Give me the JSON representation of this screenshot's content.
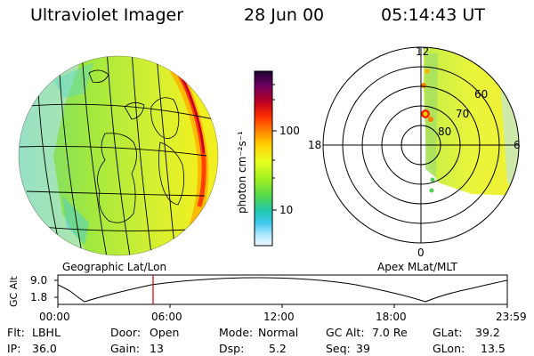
{
  "header": {
    "instrument": "Ultraviolet Imager",
    "date": "28 Jun 00",
    "time": "05:14:43 UT"
  },
  "colorbar": {
    "label": "photon cm⁻²s⁻¹",
    "ticks": [
      "100",
      "10"
    ],
    "colors": [
      "#1a0030",
      "#6a0060",
      "#c00020",
      "#ff3000",
      "#ff8000",
      "#ffd000",
      "#e8ff20",
      "#a0f020",
      "#50d850",
      "#20c8b0",
      "#40c8f0",
      "#b0e8ff",
      "#f0f8ff"
    ]
  },
  "left_panel": {
    "label": "Geographic Lat/Lon"
  },
  "right_panel": {
    "label": "Apex MLat/MLT",
    "mlt_labels": {
      "top": "12",
      "left": "18",
      "right": "6",
      "bottom": "0"
    },
    "lat_labels": [
      "60",
      "70",
      "80"
    ]
  },
  "altitude_plot": {
    "ylabel": "GC Alt",
    "yticks": [
      "9.0",
      "1.8"
    ],
    "xticks": [
      "00:00",
      "06:00",
      "12:00",
      "18:00",
      "23:59"
    ],
    "marker_time": "05:14:43"
  },
  "info": {
    "flt_label": "Flt:",
    "flt_value": "LBHL",
    "ip_label": "IP:",
    "ip_value": "36.0",
    "door_label": "Door:",
    "door_value": "Open",
    "gain_label": "Gain:",
    "gain_value": "13",
    "mode_label": "Mode:",
    "mode_value": "Normal",
    "dsp_label": "Dsp:",
    "dsp_value": "5.2",
    "gcalt_label": "GC Alt:",
    "gcalt_value": "7.0 Re",
    "seq_label": "Seq:",
    "seq_value": "39",
    "glat_label": "GLat:",
    "glat_value": "39.2",
    "glon_label": "GLon:",
    "glon_value": "13.5"
  }
}
